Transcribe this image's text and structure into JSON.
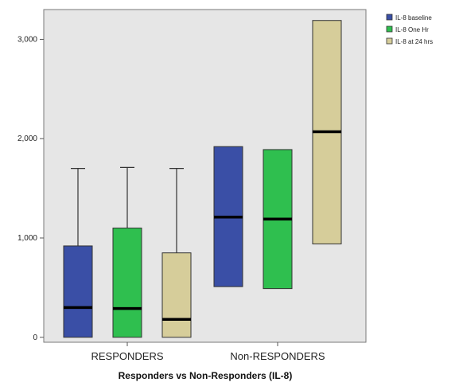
{
  "chart_data": {
    "type": "boxplot",
    "title": "",
    "xlabel": "Responders vs Non-Responders (IL-8)",
    "ylabel": "",
    "ylim": [
      -50,
      3300
    ],
    "yticks": [
      0,
      1000,
      2000,
      3000
    ],
    "ytick_labels": [
      "0",
      "1,000",
      "2,000",
      "3,000"
    ],
    "categories": [
      "RESPONDERS",
      "Non-RESPONDERS"
    ],
    "legend_position": "top-right-outside",
    "grid": false,
    "series": [
      {
        "name": "IL-8 baseline",
        "color": "#3a4fa6",
        "boxes": [
          {
            "min": 0,
            "q1": 0,
            "median": 300,
            "q3": 920,
            "max": 1700
          },
          {
            "min": 510,
            "q1": 510,
            "median": 1210,
            "q3": 1920,
            "max": 1920
          }
        ]
      },
      {
        "name": "IL-8 One Hr",
        "color": "#2fbf4f",
        "boxes": [
          {
            "min": 0,
            "q1": 0,
            "median": 290,
            "q3": 1100,
            "max": 1710
          },
          {
            "min": 490,
            "q1": 490,
            "median": 1190,
            "q3": 1890,
            "max": 1890
          }
        ]
      },
      {
        "name": "IL-8 at 24 hrs",
        "color": "#d6cd9a",
        "boxes": [
          {
            "min": 0,
            "q1": 0,
            "median": 180,
            "q3": 850,
            "max": 1700
          },
          {
            "min": 940,
            "q1": 940,
            "median": 2070,
            "q3": 3190,
            "max": 3190
          }
        ]
      }
    ]
  }
}
